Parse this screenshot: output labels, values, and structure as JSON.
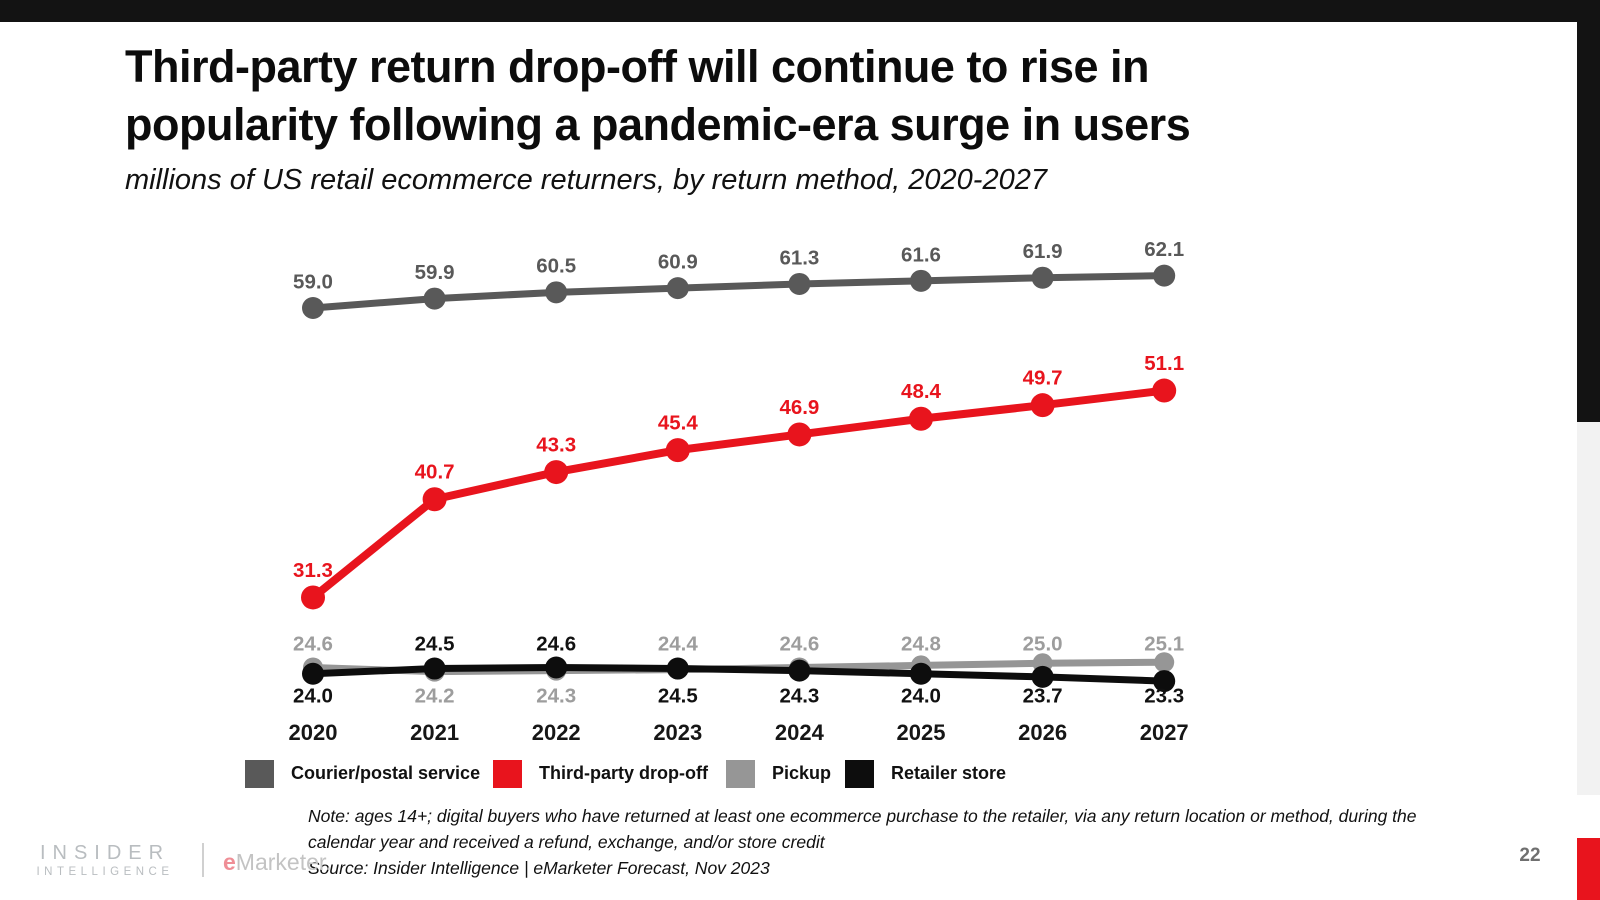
{
  "page": {
    "title_line1": "Third-party return drop-off will continue to rise in",
    "title_line2": "popularity following a pandemic-era surge in users",
    "subtitle": "millions of US retail ecommerce returners, by return method, 2020-2027",
    "page_number": "22",
    "footer": {
      "note_line1": "Note: ages 14+; digital buyers who have returned at least one ecommerce purchase to the retailer, via any return location or method, during the",
      "note_line2": "calendar year and received a refund, exchange, and/or store credit",
      "source": "Source: Insider Intelligence | eMarketer Forecast, Nov 2023"
    },
    "branding": {
      "insider": "INSIDER",
      "intelligence": "INTELLIGENCE",
      "emarketer_e": "e",
      "emarketer_rest": "Marketer."
    }
  },
  "colors": {
    "accent_black": "#131313",
    "accent_red": "#e8141d",
    "strip_gray": "#f2f2f2",
    "courier_gray": "#595959",
    "pickup_gray": "#969696",
    "pickup_label_gray": "#9d9d9d",
    "retailer_black": "#0d0d0d"
  },
  "chart_data": {
    "type": "line",
    "title": "Third-party return drop-off will continue to rise in popularity following a pandemic-era surge in users",
    "caption": "millions of US retail ecommerce returners, by return method, 2020-2027",
    "categories": [
      2020,
      2021,
      2022,
      2023,
      2024,
      2025,
      2026,
      2027
    ],
    "xlabel": "",
    "ylabel": "millions of US retail ecommerce returners",
    "ylim": [
      20,
      65
    ],
    "grid": false,
    "legend_position": "bottom",
    "series": [
      {
        "name": "Courier/postal service",
        "color": "#595959",
        "label_color": "#595959",
        "values": [
          59.0,
          59.9,
          60.5,
          60.9,
          61.3,
          61.6,
          61.9,
          62.1
        ],
        "label_positions": [
          "above",
          "above",
          "above",
          "above",
          "above",
          "above",
          "above",
          "above"
        ]
      },
      {
        "name": "Third-party drop-off",
        "color": "#e8141d",
        "label_color": "#e8141d",
        "values": [
          31.3,
          40.7,
          43.3,
          45.4,
          46.9,
          48.4,
          49.7,
          51.1
        ],
        "label_positions": [
          "above",
          "above",
          "above",
          "above",
          "above",
          "above",
          "above",
          "above"
        ]
      },
      {
        "name": "Pickup",
        "color": "#969696",
        "label_color": "#9d9d9d",
        "values": [
          24.6,
          24.2,
          24.3,
          24.4,
          24.6,
          24.8,
          25.0,
          25.1
        ],
        "label_positions": [
          "above",
          "below",
          "below",
          "above",
          "above",
          "above",
          "above",
          "above"
        ]
      },
      {
        "name": "Retailer store",
        "color": "#0d0d0d",
        "label_color": "#111111",
        "values": [
          24.0,
          24.5,
          24.6,
          24.5,
          24.3,
          24.0,
          23.7,
          23.3
        ],
        "label_positions": [
          "below",
          "above",
          "above",
          "below",
          "below",
          "below",
          "below",
          "below"
        ]
      }
    ]
  }
}
